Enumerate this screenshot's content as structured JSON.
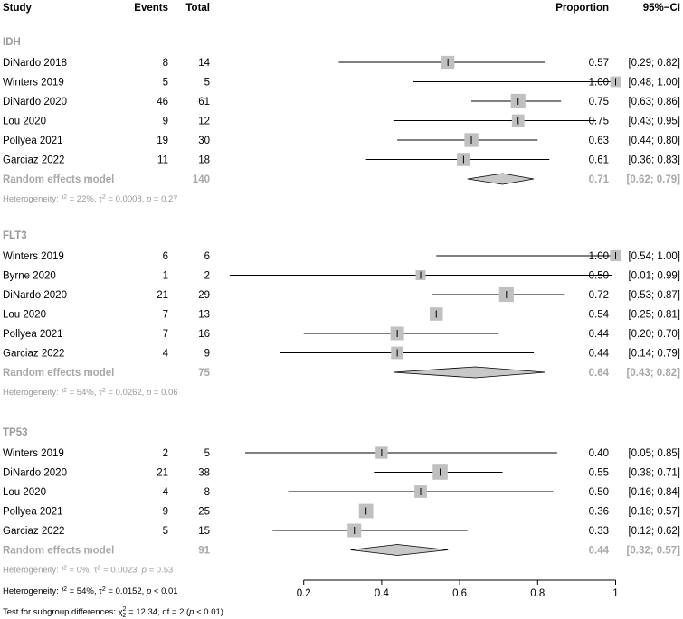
{
  "header": {
    "study": "Study",
    "events": "Events",
    "total": "Total",
    "proportion": "Proportion",
    "ci": "95%−CI"
  },
  "chart_data": {
    "type": "forest",
    "x_axis": {
      "range": [
        0.2,
        1.0
      ],
      "ticks": [
        "0.2",
        "0.4",
        "0.6",
        "0.8",
        "1"
      ]
    },
    "colors": {
      "square": "#c0c0c0",
      "diamond": "#c8c8c8",
      "summary_text": "#a8a8a8",
      "heterogeneity_text": "#9a9a9a"
    },
    "subgroups": [
      {
        "name": "IDH",
        "studies": [
          {
            "study": "DiNardo 2018",
            "events": "8",
            "total": "14",
            "prop": "0.57",
            "ci": "[0.29; 0.82]",
            "p": 0.57,
            "lo": 0.29,
            "hi": 0.82,
            "weight": 0.9
          },
          {
            "study": "Winters 2019",
            "events": "5",
            "total": "5",
            "prop": "1.00",
            "ci": "[0.48; 1.00]",
            "p": 1.0,
            "lo": 0.48,
            "hi": 1.0,
            "weight": 0.6
          },
          {
            "study": "DiNardo 2020",
            "events": "46",
            "total": "61",
            "prop": "0.75",
            "ci": "[0.63; 0.86]",
            "p": 0.75,
            "lo": 0.63,
            "hi": 0.86,
            "weight": 1.15
          },
          {
            "study": "Lou 2020",
            "events": "9",
            "total": "12",
            "prop": "0.75",
            "ci": "[0.43; 0.95]",
            "p": 0.75,
            "lo": 0.43,
            "hi": 0.95,
            "weight": 0.85
          },
          {
            "study": "Pollyea 2021",
            "events": "19",
            "total": "30",
            "prop": "0.63",
            "ci": "[0.44; 0.80]",
            "p": 0.63,
            "lo": 0.44,
            "hi": 0.8,
            "weight": 1.05
          },
          {
            "study": "Garciaz 2022",
            "events": "11",
            "total": "18",
            "prop": "0.61",
            "ci": "[0.36; 0.83]",
            "p": 0.61,
            "lo": 0.36,
            "hi": 0.83,
            "weight": 0.95
          }
        ],
        "random": {
          "label": "Random effects model",
          "total": "140",
          "prop": "0.71",
          "ci": "[0.62; 0.79]",
          "p": 0.71,
          "lo": 0.62,
          "hi": 0.79
        },
        "heterogeneity": {
          "i2": "22%",
          "tau2": "0.0008",
          "p": "0.27"
        }
      },
      {
        "name": "FLT3",
        "studies": [
          {
            "study": "Winters 2019",
            "events": "6",
            "total": "6",
            "prop": "1.00",
            "ci": "[0.54; 1.00]",
            "p": 1.0,
            "lo": 0.54,
            "hi": 1.0,
            "weight": 0.65
          },
          {
            "study": "Byrne 2020",
            "events": "1",
            "total": "2",
            "prop": "0.50",
            "ci": "[0.01; 0.99]",
            "p": 0.5,
            "lo": 0.01,
            "hi": 0.99,
            "weight": 0.5
          },
          {
            "study": "DiNardo 2020",
            "events": "21",
            "total": "29",
            "prop": "0.72",
            "ci": "[0.53; 0.87]",
            "p": 0.72,
            "lo": 0.53,
            "hi": 0.87,
            "weight": 1.15
          },
          {
            "study": "Lou 2020",
            "events": "7",
            "total": "13",
            "prop": "0.54",
            "ci": "[0.25; 0.81]",
            "p": 0.54,
            "lo": 0.25,
            "hi": 0.81,
            "weight": 0.95
          },
          {
            "study": "Pollyea 2021",
            "events": "7",
            "total": "16",
            "prop": "0.44",
            "ci": "[0.20; 0.70]",
            "p": 0.44,
            "lo": 0.2,
            "hi": 0.7,
            "weight": 1.0
          },
          {
            "study": "Garciaz 2022",
            "events": "4",
            "total": "9",
            "prop": "0.44",
            "ci": "[0.14; 0.79]",
            "p": 0.44,
            "lo": 0.14,
            "hi": 0.79,
            "weight": 0.85
          }
        ],
        "random": {
          "label": "Random effects model",
          "total": "75",
          "prop": "0.64",
          "ci": "[0.43; 0.82]",
          "p": 0.64,
          "lo": 0.43,
          "hi": 0.82
        },
        "heterogeneity": {
          "i2": "54%",
          "tau2": "0.0262",
          "p": "0.06"
        }
      },
      {
        "name": "TP53",
        "studies": [
          {
            "study": "Winters 2019",
            "events": "2",
            "total": "5",
            "prop": "0.40",
            "ci": "[0.05; 0.85]",
            "p": 0.4,
            "lo": 0.05,
            "hi": 0.85,
            "weight": 0.8
          },
          {
            "study": "DiNardo 2020",
            "events": "21",
            "total": "38",
            "prop": "0.55",
            "ci": "[0.38; 0.71]",
            "p": 0.55,
            "lo": 0.38,
            "hi": 0.71,
            "weight": 1.2
          },
          {
            "study": "Lou 2020",
            "events": "4",
            "total": "8",
            "prop": "0.50",
            "ci": "[0.16; 0.84]",
            "p": 0.5,
            "lo": 0.16,
            "hi": 0.84,
            "weight": 0.85
          },
          {
            "study": "Pollyea 2021",
            "events": "9",
            "total": "25",
            "prop": "0.36",
            "ci": "[0.18; 0.57]",
            "p": 0.36,
            "lo": 0.18,
            "hi": 0.57,
            "weight": 1.1
          },
          {
            "study": "Garciaz 2022",
            "events": "5",
            "total": "15",
            "prop": "0.33",
            "ci": "[0.12; 0.62]",
            "p": 0.33,
            "lo": 0.12,
            "hi": 0.62,
            "weight": 1.0
          }
        ],
        "random": {
          "label": "Random effects model",
          "total": "91",
          "prop": "0.44",
          "ci": "[0.32; 0.57]",
          "p": 0.44,
          "lo": 0.32,
          "hi": 0.57
        },
        "heterogeneity": {
          "i2": "0%",
          "tau2": "0.0023",
          "p": "0.53"
        }
      }
    ],
    "overall_heterogeneity": {
      "i2": "54%",
      "tau2": "0.0152",
      "p": "< 0.01"
    },
    "subgroup_test": {
      "chi2": "12.34",
      "df": "2",
      "p": "< 0.01"
    }
  }
}
